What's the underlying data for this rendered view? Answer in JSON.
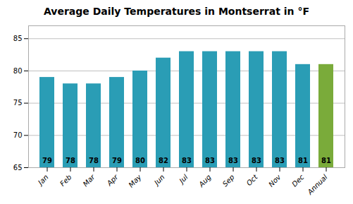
{
  "chart_data": {
    "type": "bar",
    "title": "Average Daily Temperatures in Montserrat in °F",
    "categories": [
      "Jan",
      "Feb",
      "Mar",
      "Apr",
      "May",
      "Jun",
      "Jul",
      "Aug",
      "Sep",
      "Oct",
      "Nov",
      "Dec",
      "Annual"
    ],
    "values": [
      79,
      78,
      78,
      79,
      80,
      82,
      83,
      83,
      83,
      83,
      83,
      81,
      81
    ],
    "colors": [
      "#2a9db5",
      "#2a9db5",
      "#2a9db5",
      "#2a9db5",
      "#2a9db5",
      "#2a9db5",
      "#2a9db5",
      "#2a9db5",
      "#2a9db5",
      "#2a9db5",
      "#2a9db5",
      "#2a9db5",
      "#7aab3a"
    ],
    "ylim": [
      65,
      87
    ],
    "yticks": [
      65,
      70,
      75,
      80,
      85
    ],
    "grid": true,
    "data_labels": true
  }
}
